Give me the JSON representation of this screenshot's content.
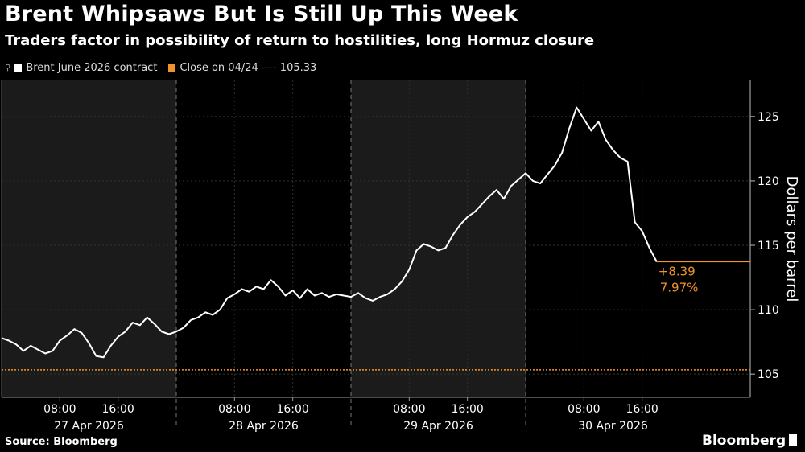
{
  "header": {
    "title": "Brent Whipsaws But Is Still Up This Week",
    "subtitle": "Traders factor in possibility of return to hostilities, long Hormuz closure"
  },
  "legend": [
    {
      "label": "Brent June 2026 contract",
      "color": "#ffffff",
      "icon": "line-marker-icon"
    },
    {
      "label": "Close on 04/24 ---- 105.33",
      "color": "#f0932b"
    }
  ],
  "footer": {
    "source": "Source: Bloomberg",
    "brand": "Bloomberg"
  },
  "chart_data": {
    "type": "line",
    "ylabel": "Dollars per barrel",
    "ylim": [
      103.2,
      127.8
    ],
    "yticks": [
      105,
      110,
      115,
      120,
      125
    ],
    "grid": true,
    "days": [
      "27 Apr 2026",
      "28 Apr 2026",
      "29 Apr 2026",
      "30 Apr 2026"
    ],
    "time_ticks": [
      "08:00",
      "16:00"
    ],
    "reference_line": {
      "label": "Close on 04/24",
      "value": 105.33,
      "color": "#f0932b"
    },
    "change_annotation": {
      "value": "+8.39",
      "percent": "7.97%",
      "color": "#f0932b"
    },
    "last_value": 113.72,
    "series": [
      {
        "name": "Brent June 2026 contract",
        "color": "#ffffff",
        "points": [
          [
            0,
            0,
            107.8
          ],
          [
            0,
            1,
            107.6
          ],
          [
            0,
            2,
            107.3
          ],
          [
            0,
            3,
            106.8
          ],
          [
            0,
            4,
            107.2
          ],
          [
            0,
            5,
            106.9
          ],
          [
            0,
            6,
            106.6
          ],
          [
            0,
            7,
            106.8
          ],
          [
            0,
            8,
            107.6
          ],
          [
            0,
            9,
            108.0
          ],
          [
            0,
            10,
            108.5
          ],
          [
            0,
            11,
            108.2
          ],
          [
            0,
            12,
            107.4
          ],
          [
            0,
            13,
            106.4
          ],
          [
            0,
            14,
            106.3
          ],
          [
            0,
            15,
            107.2
          ],
          [
            0,
            16,
            107.9
          ],
          [
            0,
            17,
            108.3
          ],
          [
            0,
            18,
            109.0
          ],
          [
            0,
            19,
            108.8
          ],
          [
            0,
            20,
            109.4
          ],
          [
            0,
            21,
            108.9
          ],
          [
            0,
            22,
            108.3
          ],
          [
            0,
            23,
            108.1
          ],
          [
            1,
            0,
            108.3
          ],
          [
            1,
            1,
            108.6
          ],
          [
            1,
            2,
            109.2
          ],
          [
            1,
            3,
            109.4
          ],
          [
            1,
            4,
            109.8
          ],
          [
            1,
            5,
            109.6
          ],
          [
            1,
            6,
            110.0
          ],
          [
            1,
            7,
            110.9
          ],
          [
            1,
            8,
            111.2
          ],
          [
            1,
            9,
            111.6
          ],
          [
            1,
            10,
            111.4
          ],
          [
            1,
            11,
            111.8
          ],
          [
            1,
            12,
            111.6
          ],
          [
            1,
            13,
            112.3
          ],
          [
            1,
            14,
            111.8
          ],
          [
            1,
            15,
            111.1
          ],
          [
            1,
            16,
            111.5
          ],
          [
            1,
            17,
            110.9
          ],
          [
            1,
            18,
            111.6
          ],
          [
            1,
            19,
            111.1
          ],
          [
            1,
            20,
            111.3
          ],
          [
            1,
            21,
            111.0
          ],
          [
            1,
            22,
            111.2
          ],
          [
            1,
            23,
            111.1
          ],
          [
            2,
            0,
            111.0
          ],
          [
            2,
            1,
            111.3
          ],
          [
            2,
            2,
            110.9
          ],
          [
            2,
            3,
            110.7
          ],
          [
            2,
            4,
            111.0
          ],
          [
            2,
            5,
            111.2
          ],
          [
            2,
            6,
            111.6
          ],
          [
            2,
            7,
            112.2
          ],
          [
            2,
            8,
            113.1
          ],
          [
            2,
            9,
            114.6
          ],
          [
            2,
            10,
            115.1
          ],
          [
            2,
            11,
            114.9
          ],
          [
            2,
            12,
            114.6
          ],
          [
            2,
            13,
            114.8
          ],
          [
            2,
            14,
            115.8
          ],
          [
            2,
            15,
            116.6
          ],
          [
            2,
            16,
            117.2
          ],
          [
            2,
            17,
            117.6
          ],
          [
            2,
            18,
            118.2
          ],
          [
            2,
            19,
            118.8
          ],
          [
            2,
            20,
            119.3
          ],
          [
            2,
            21,
            118.6
          ],
          [
            2,
            22,
            119.6
          ],
          [
            2,
            23,
            120.1
          ],
          [
            3,
            0,
            120.6
          ],
          [
            3,
            1,
            120.0
          ],
          [
            3,
            2,
            119.8
          ],
          [
            3,
            3,
            120.5
          ],
          [
            3,
            4,
            121.2
          ],
          [
            3,
            5,
            122.2
          ],
          [
            3,
            6,
            124.1
          ],
          [
            3,
            7,
            125.7
          ],
          [
            3,
            8,
            124.8
          ],
          [
            3,
            9,
            123.9
          ],
          [
            3,
            10,
            124.6
          ],
          [
            3,
            11,
            123.2
          ],
          [
            3,
            12,
            122.4
          ],
          [
            3,
            13,
            121.8
          ],
          [
            3,
            14,
            121.5
          ],
          [
            3,
            15,
            116.8
          ],
          [
            3,
            16,
            116.1
          ],
          [
            3,
            17,
            114.8
          ],
          [
            3,
            18,
            113.72
          ]
        ]
      }
    ]
  }
}
